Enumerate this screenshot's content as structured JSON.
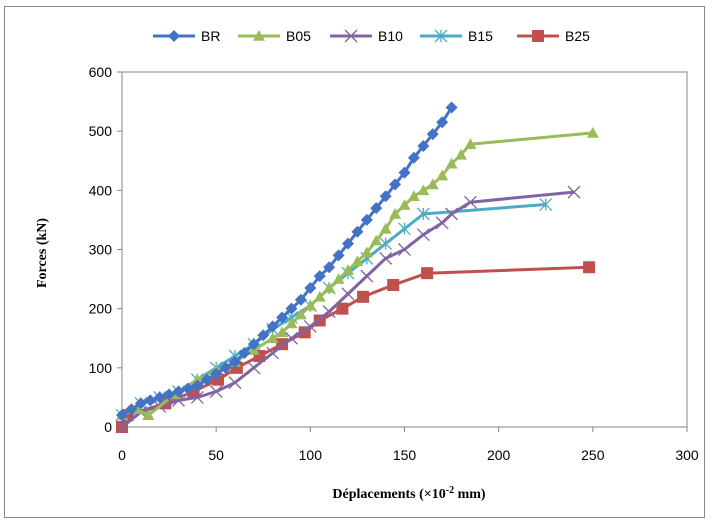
{
  "chart_data": {
    "type": "line",
    "title": "",
    "xlabel": "Déplacements (×10",
    "xlabel_sup": "-2",
    "xlabel_unit": " mm)",
    "ylabel": "Forces (kN)",
    "xlim": [
      0,
      300
    ],
    "ylim": [
      0,
      600
    ],
    "x_ticks": [
      "0",
      "50",
      "100",
      "150",
      "200",
      "250",
      "300"
    ],
    "y_ticks": [
      "0",
      "100",
      "200",
      "300",
      "400",
      "500",
      "600"
    ],
    "grid": false,
    "legend_position": "top",
    "series": [
      {
        "name": "BR",
        "color": "#4472C4",
        "marker": "diamond",
        "x": [
          0,
          5,
          10,
          15,
          20,
          25,
          30,
          35,
          40,
          45,
          50,
          55,
          60,
          65,
          70,
          75,
          80,
          85,
          90,
          95,
          100,
          105,
          110,
          115,
          120,
          125,
          130,
          135,
          140,
          145,
          150,
          155,
          160,
          165,
          170,
          175
        ],
        "y": [
          20,
          30,
          40,
          45,
          50,
          55,
          60,
          65,
          70,
          80,
          90,
          100,
          110,
          125,
          140,
          155,
          170,
          185,
          200,
          215,
          235,
          255,
          270,
          290,
          310,
          330,
          350,
          370,
          390,
          410,
          430,
          455,
          475,
          495,
          515,
          540
        ]
      },
      {
        "name": "B05",
        "color": "#9BBB59",
        "marker": "triangle",
        "x": [
          0,
          8,
          14,
          28,
          40,
          50,
          60,
          70,
          80,
          85,
          90,
          95,
          100,
          105,
          110,
          115,
          120,
          125,
          130,
          135,
          140,
          145,
          150,
          155,
          160,
          165,
          170,
          175,
          180,
          185,
          250
        ],
        "y": [
          20,
          30,
          20,
          55,
          80,
          95,
          110,
          130,
          150,
          160,
          175,
          190,
          205,
          220,
          235,
          250,
          265,
          280,
          295,
          315,
          335,
          360,
          375,
          390,
          400,
          410,
          425,
          445,
          460,
          478,
          497
        ]
      },
      {
        "name": "B10",
        "color": "#8064A2",
        "marker": "x",
        "x": [
          0,
          10,
          20,
          30,
          40,
          50,
          60,
          70,
          80,
          90,
          100,
          110,
          120,
          130,
          140,
          150,
          160,
          170,
          175,
          185,
          240
        ],
        "y": [
          0,
          25,
          35,
          45,
          50,
          60,
          75,
          100,
          125,
          150,
          170,
          195,
          225,
          255,
          285,
          300,
          325,
          345,
          360,
          380,
          397
        ]
      },
      {
        "name": "B15",
        "color": "#4BACC6",
        "marker": "asterisk",
        "x": [
          0,
          10,
          20,
          30,
          40,
          50,
          60,
          70,
          80,
          90,
          100,
          110,
          120,
          130,
          140,
          150,
          160,
          225
        ],
        "y": [
          20,
          40,
          50,
          60,
          80,
          100,
          120,
          140,
          165,
          185,
          205,
          235,
          260,
          285,
          310,
          335,
          360,
          376
        ]
      },
      {
        "name": "B25",
        "color": "#C0504D",
        "marker": "square",
        "x": [
          0,
          3,
          23,
          38,
          51,
          61,
          73,
          85,
          97,
          105,
          117,
          128,
          144,
          162,
          248
        ],
        "y": [
          0,
          20,
          40,
          60,
          80,
          100,
          120,
          140,
          160,
          180,
          200,
          220,
          240,
          260,
          270
        ]
      }
    ]
  }
}
